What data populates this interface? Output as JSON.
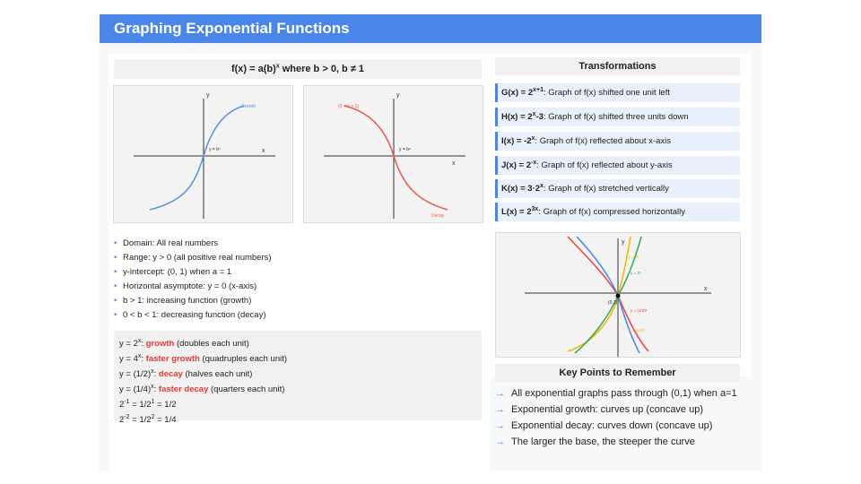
{
  "header": {
    "title": "Graphing Exponential Functions"
  },
  "formula": {
    "prefix": "f(x) = a(b)",
    "sup": "x",
    "suffix": " where b > 0, b ≠ 1"
  },
  "graphs": {
    "growth": {
      "y_axis": "y",
      "x_axis": "x",
      "curve_label": "Growth",
      "point_label": "y = bˣ",
      "curve_color": "#5b8fe0"
    },
    "decay": {
      "y_axis": "y",
      "x_axis": "x",
      "curve_label": "Decay",
      "condition_label": "(0 < b < 1)",
      "point_label": "y = bˣ",
      "curve_color": "#e85b4a"
    }
  },
  "properties": [
    "Domain: All real numbers",
    "Range: y > 0 (all positive real numbers)",
    "y-intercept: (0, 1) when a = 1",
    "Horizontal asymptote: y = 0 (x-axis)",
    "b > 1: increasing function (growth)",
    "0 < b < 1: decreasing function (decay)"
  ],
  "examples": [
    {
      "base": "y = 2",
      "sup": "x",
      "colon": ": ",
      "kind": "growth",
      "note": " (doubles each unit)"
    },
    {
      "base": "y = 4",
      "sup": "x",
      "colon": ": ",
      "kind": "faster growth",
      "note": " (quadruples each unit)"
    },
    {
      "base": "y = (1/2)",
      "sup": "x",
      "colon": ": ",
      "kind": "decay",
      "note": " (halves each unit)"
    },
    {
      "base": "y = (1/4)",
      "sup": "x",
      "colon": ": ",
      "kind": "faster decay",
      "note": " (quarters each unit)"
    }
  ],
  "neg_exponents": [
    {
      "a": "2",
      "a_sup": "-1",
      "b": " = 1/2",
      "b_sup": "1",
      "c": " = 1/2"
    },
    {
      "a": "2",
      "a_sup": "-2",
      "b": " = 1/2",
      "b_sup": "2",
      "c": " = 1/4"
    }
  ],
  "transformations": {
    "heading": "Transformations",
    "rows": [
      {
        "name": "G(x) = 2",
        "sup": "x+1",
        "desc": ": Graph of f(x) shifted one unit left"
      },
      {
        "name": "H(x) = 2",
        "sup": "x",
        "tail": "-3",
        "desc": ": Graph of f(x) shifted three units down"
      },
      {
        "name": "I(x) = -2",
        "sup": "x",
        "desc": ": Graph of f(x) reflected about x-axis"
      },
      {
        "name": "J(x) = 2",
        "sup": "-x",
        "desc": ": Graph of f(x) reflected about y-axis"
      },
      {
        "name": "K(x) = 3·2",
        "sup": "x",
        "desc": ": Graph of f(x) stretched vertically"
      },
      {
        "name": "L(x) = 2",
        "sup": "3x",
        "desc": ": Graph of f(x) compressed horizontally"
      }
    ]
  },
  "transform_graph": {
    "x_axis": "x",
    "y_axis": "y",
    "origin": "(0,1)",
    "labels": [
      "y = 4ˣ",
      "y = 2ˣ",
      "y = (1/2)ˣ",
      "y = (1/4)ˣ"
    ],
    "colors": [
      "#f4b400",
      "#34a853",
      "#4285f4",
      "#ea4335"
    ]
  },
  "key_points": {
    "heading": "Key Points to Remember",
    "arrow": "→",
    "items": [
      "All exponential graphs pass through (0,1) when a=1",
      "Exponential growth: curves up (concave up)",
      "Exponential decay: curves down (concave up)",
      "The larger the base, the steeper the curve"
    ]
  }
}
